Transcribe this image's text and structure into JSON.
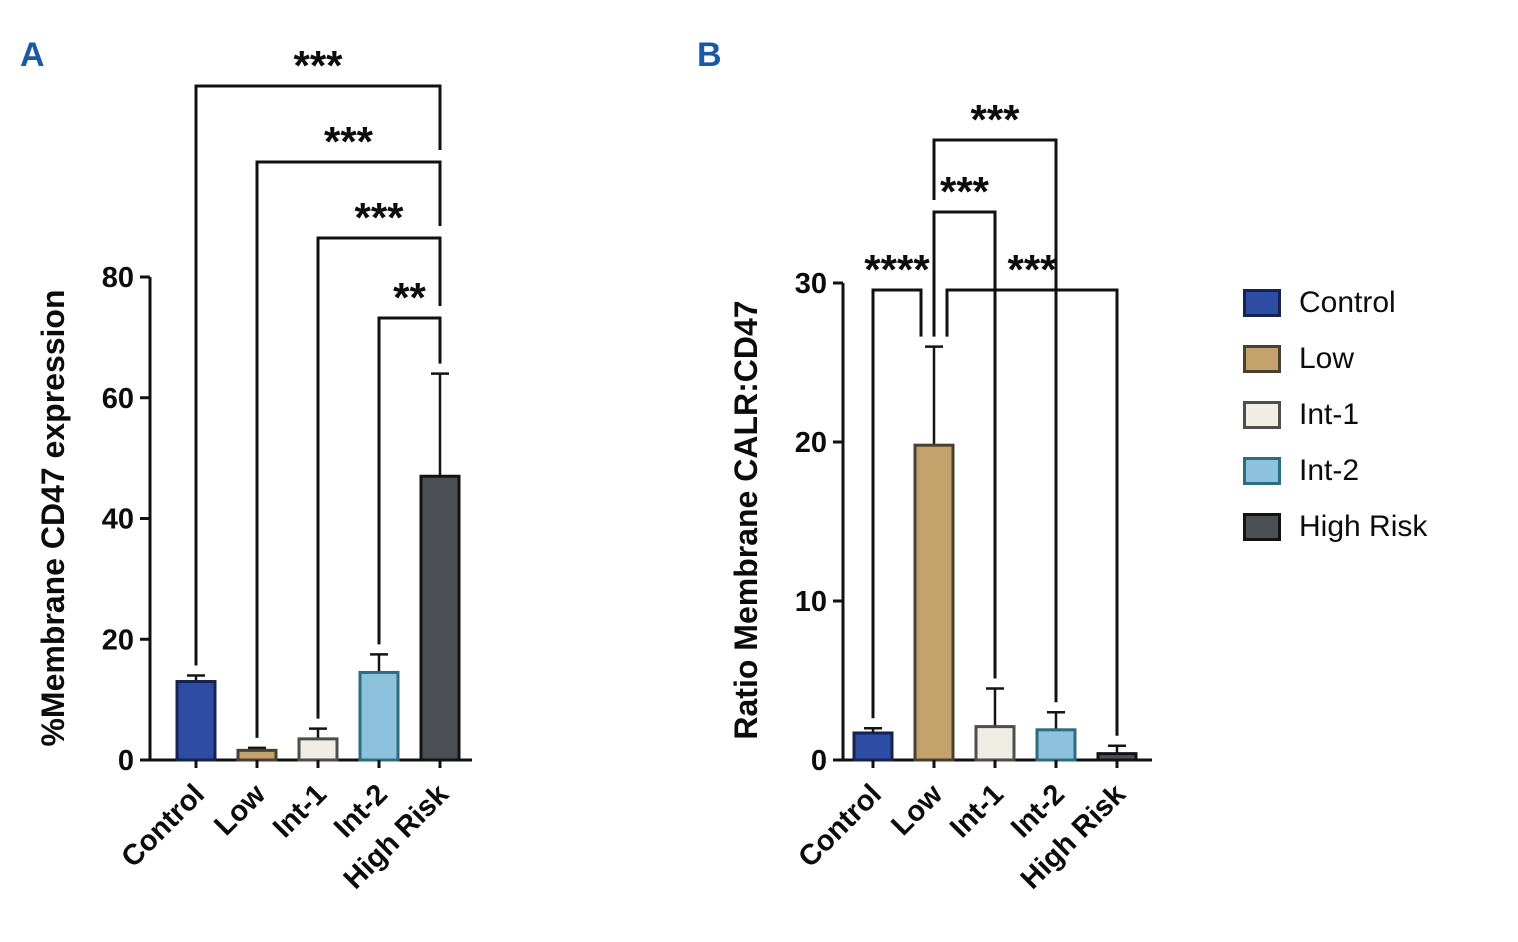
{
  "chart_data": [
    {
      "id": "A",
      "panel_label": "A",
      "type": "bar",
      "title": "",
      "ylabel": "%Membrane CD47 expression",
      "xlabel": "",
      "categories": [
        "Control",
        "Low",
        "Int-1",
        "Int-2",
        "High Risk"
      ],
      "values": [
        13,
        1.6,
        3.5,
        14.5,
        47
      ],
      "errors_sd_upper": [
        1,
        0.4,
        1.7,
        3,
        17
      ],
      "ylim": [
        0,
        80
      ],
      "yticks": [
        0,
        20,
        40,
        60,
        80
      ],
      "grid": false,
      "legend_position": "none",
      "significance_brackets": [
        {
          "group_a": "Control",
          "group_b": "High Risk",
          "label": "***"
        },
        {
          "group_a": "Low",
          "group_b": "High Risk",
          "label": "***"
        },
        {
          "group_a": "Int-1",
          "group_b": "High Risk",
          "label": "***"
        },
        {
          "group_a": "Int-2",
          "group_b": "High Risk",
          "label": "**"
        }
      ]
    },
    {
      "id": "B",
      "panel_label": "B",
      "type": "bar",
      "title": "",
      "ylabel": "Ratio Membrane CALR:CD47",
      "xlabel": "",
      "categories": [
        "Control",
        "Low",
        "Int-1",
        "Int-2",
        "High Risk"
      ],
      "values": [
        1.7,
        19.8,
        2.1,
        1.9,
        0.4
      ],
      "errors_sd_upper": [
        0.3,
        6.2,
        2.4,
        1.1,
        0.5
      ],
      "ylim": [
        0,
        30
      ],
      "yticks": [
        0,
        10,
        20,
        30
      ],
      "grid": false,
      "legend_position": "right",
      "significance_brackets": [
        {
          "group_a": "Control",
          "group_b": "Low",
          "label": "****"
        },
        {
          "group_a": "Low",
          "group_b": "Int-1",
          "label": "***"
        },
        {
          "group_a": "Low",
          "group_b": "Int-2",
          "label": "***"
        },
        {
          "group_a": "Low",
          "group_b": "High Risk",
          "label": "***"
        }
      ]
    }
  ],
  "legend": {
    "position": "right",
    "items": [
      {
        "label": "Control",
        "fill": "#2c4da3",
        "stroke": "#17234f"
      },
      {
        "label": "Low",
        "fill": "#c4a26b",
        "stroke": "#4a4031"
      },
      {
        "label": "Int-1",
        "fill": "#f0ede5",
        "stroke": "#4d4d4b"
      },
      {
        "label": "Int-2",
        "fill": "#8cc2dc",
        "stroke": "#2e6c80"
      },
      {
        "label": "High Risk",
        "fill": "#4c5055",
        "stroke": "#121316"
      }
    ]
  },
  "style": {
    "axis_color": "#111111",
    "text_color": "#0c0c0c",
    "error_bar_color": "#141414",
    "panel_letter_color": "#1b58a6",
    "background": "#ffffff"
  }
}
